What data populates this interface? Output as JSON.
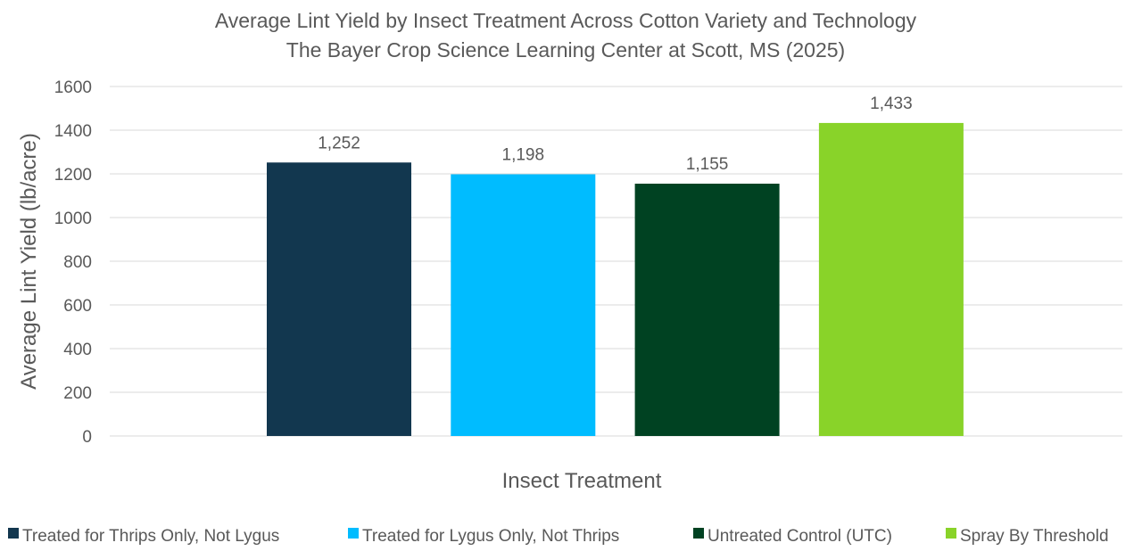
{
  "chart_data": {
    "type": "bar",
    "title": [
      "Average Lint Yield by Insect Treatment Across Cotton Variety and Technology",
      "The Bayer Crop Science Learning Center at Scott, MS (2025)"
    ],
    "xlabel": "Insect Treatment",
    "ylabel": "Average Lint Yield (lb/acre)",
    "ylim": [
      0,
      1600
    ],
    "yticks": [
      "0",
      "200",
      "400",
      "600",
      "800",
      "1000",
      "1200",
      "1400",
      "1600"
    ],
    "grid": true,
    "legend_position": "bottom",
    "series": [
      {
        "name": "Treated for Thrips Only, Not Lygus",
        "value": 1252,
        "label": "1,252",
        "color": "#12374f"
      },
      {
        "name": "Treated for Lygus Only, Not Thrips",
        "value": 1198,
        "label": "1,198",
        "color": "#00bcff"
      },
      {
        "name": "Untreated Control (UTC)",
        "value": 1155,
        "label": "1,155",
        "color": "#004222"
      },
      {
        "name": "Spray By Threshold",
        "value": 1433,
        "label": "1,433",
        "color": "#89d329"
      }
    ]
  }
}
